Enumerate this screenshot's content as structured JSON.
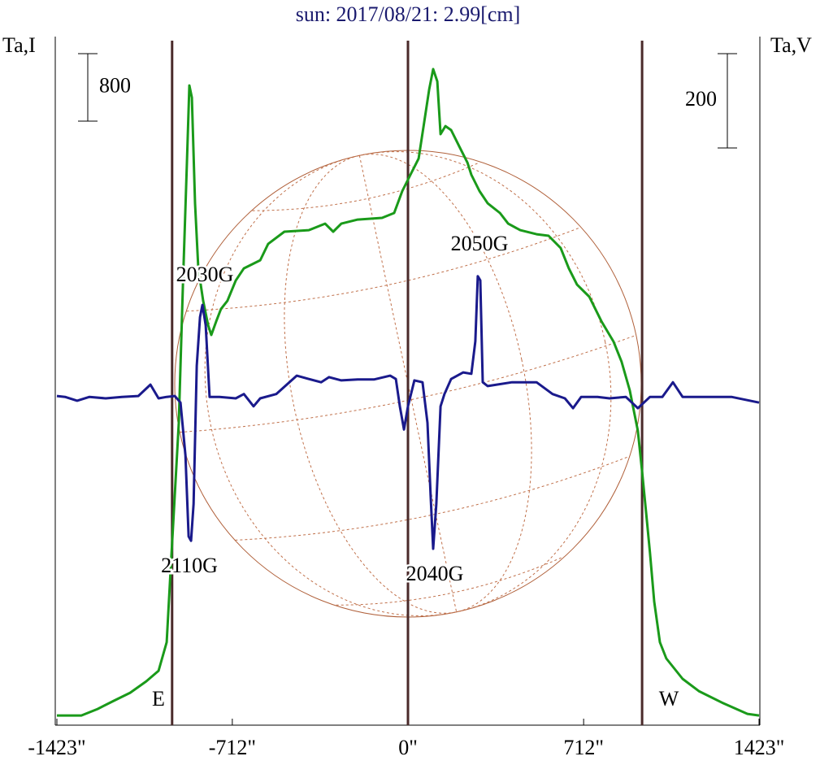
{
  "chart_data": {
    "type": "line",
    "title": "sun: 2017/08/21: 2.99[cm]",
    "ylabel": "Ta,I",
    "y2label": "Ta,V",
    "xlim": [
      -1423,
      1423
    ],
    "xticks": [
      {
        "value": -1423,
        "label": "-1423\""
      },
      {
        "value": -712,
        "label": "-712\""
      },
      {
        "value": 0,
        "label": "0\""
      },
      {
        "value": 712,
        "label": "712\""
      },
      {
        "value": 1423,
        "label": "1423\""
      }
    ],
    "ylim": [
      -115,
      8050
    ],
    "y2lim": [
      -693,
      767
    ],
    "vlines": [
      -956,
      0,
      949
    ],
    "scale_bars": [
      {
        "value": 800,
        "axis": "y"
      },
      {
        "value": 200,
        "axis": "y2"
      }
    ],
    "annotations": [
      "2030G",
      "2050G",
      "2110G",
      "2040G",
      "E",
      "W"
    ],
    "series": [
      {
        "color": "#1a9a1a",
        "axis": "y",
        "x": [
          -1423,
          -1324,
          -1258,
          -1192,
          -1126,
          -1061,
          -1011,
          -978,
          -962,
          -949,
          -929,
          -912,
          -896,
          -886,
          -876,
          -863,
          -850,
          -830,
          -810,
          -797,
          -777,
          -758,
          -732,
          -698,
          -665,
          -599,
          -567,
          -501,
          -402,
          -336,
          -303,
          -270,
          -204,
          -105,
          -56,
          -23,
          10,
          43,
          66,
          86,
          102,
          119,
          132,
          152,
          175,
          208,
          241,
          257,
          290,
          323,
          373,
          406,
          455,
          521,
          570,
          619,
          652,
          685,
          735,
          784,
          833,
          866,
          899,
          932,
          949,
          965,
          981,
          998,
          1021,
          1047,
          1113,
          1179,
          1278,
          1376,
          1423
        ],
        "values": [
          0,
          0,
          77,
          174,
          270,
          405,
          530,
          868,
          1735,
          2410,
          3470,
          5109,
          6555,
          7471,
          7326,
          6073,
          5302,
          4916,
          4627,
          4512,
          4675,
          4820,
          4916,
          5157,
          5302,
          5398,
          5591,
          5736,
          5755,
          5832,
          5736,
          5832,
          5880,
          5900,
          5958,
          6218,
          6411,
          6603,
          7037,
          7423,
          7664,
          7519,
          6893,
          6989,
          6941,
          6748,
          6555,
          6411,
          6218,
          6073,
          5958,
          5832,
          5755,
          5707,
          5688,
          5543,
          5302,
          5109,
          4965,
          4675,
          4434,
          4193,
          3856,
          3374,
          2892,
          2410,
          1928,
          1350,
          868,
          675,
          434,
          289,
          145,
          19,
          0
        ]
      },
      {
        "color": "#1a1a8c",
        "axis": "y2",
        "x": [
          -1423,
          -1390,
          -1341,
          -1291,
          -1225,
          -1159,
          -1093,
          -1044,
          -1011,
          -978,
          -945,
          -922,
          -902,
          -889,
          -879,
          -869,
          -856,
          -843,
          -833,
          -820,
          -804,
          -764,
          -698,
          -665,
          -626,
          -599,
          -534,
          -451,
          -402,
          -352,
          -320,
          -270,
          -204,
          -138,
          -72,
          -49,
          -33,
          -16,
          0,
          26,
          59,
          79,
          92,
          102,
          115,
          132,
          148,
          175,
          224,
          257,
          273,
          283,
          293,
          303,
          323,
          422,
          521,
          586,
          636,
          669,
          702,
          768,
          817,
          883,
          932,
          981,
          1031,
          1074,
          1113,
          1212,
          1311,
          1423
        ],
        "values": [
          5,
          3,
          -5,
          3,
          0,
          3,
          5,
          29,
          0,
          3,
          5,
          -9,
          -121,
          -293,
          -302,
          -224,
          69,
          172,
          198,
          155,
          3,
          3,
          0,
          9,
          -17,
          0,
          9,
          48,
          41,
          34,
          45,
          38,
          40,
          40,
          48,
          41,
          -17,
          -66,
          -17,
          38,
          34,
          -52,
          -207,
          -319,
          -224,
          -17,
          9,
          41,
          55,
          52,
          121,
          259,
          250,
          34,
          26,
          34,
          34,
          9,
          0,
          -21,
          3,
          3,
          0,
          3,
          -21,
          3,
          3,
          34,
          3,
          3,
          3,
          -9
        ]
      }
    ]
  }
}
